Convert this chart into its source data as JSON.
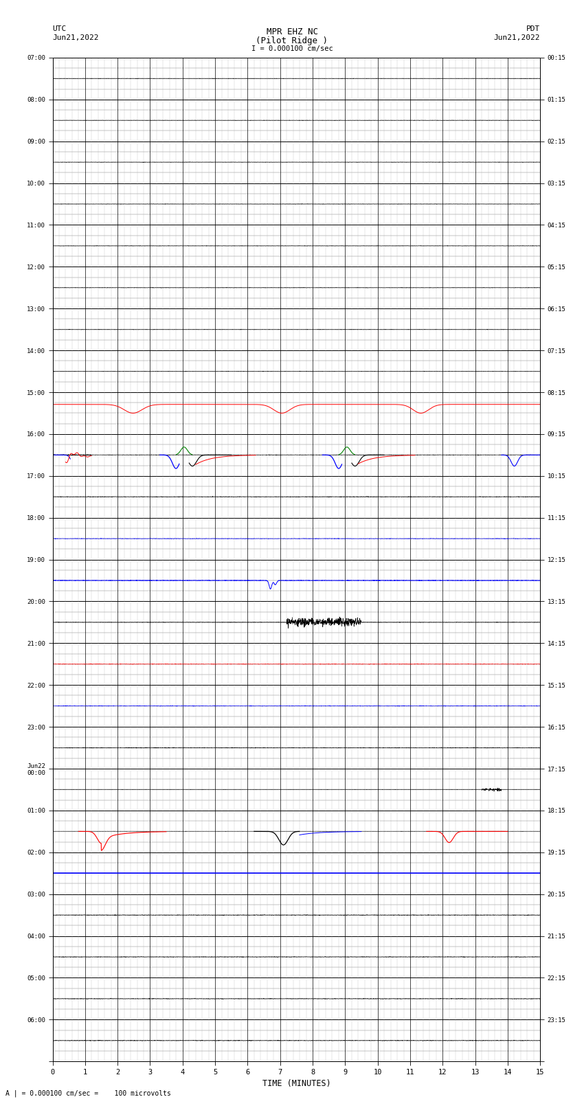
{
  "title_line1": "MPR EHZ NC",
  "title_line2": "(Pilot Ridge )",
  "scale_label": "I = 0.000100 cm/sec",
  "bottom_label": "A | = 0.000100 cm/sec =    100 microvolts",
  "xlabel": "TIME (MINUTES)",
  "left_header_1": "UTC",
  "left_header_2": "Jun21,2022",
  "right_header_1": "PDT",
  "right_header_2": "Jun21,2022",
  "left_times": [
    "07:00",
    "08:00",
    "09:00",
    "10:00",
    "11:00",
    "12:00",
    "13:00",
    "14:00",
    "15:00",
    "16:00",
    "17:00",
    "18:00",
    "19:00",
    "20:00",
    "21:00",
    "22:00",
    "23:00",
    "Jun22\n00:00",
    "01:00",
    "02:00",
    "03:00",
    "04:00",
    "05:00",
    "06:00"
  ],
  "right_times": [
    "00:15",
    "01:15",
    "02:15",
    "03:15",
    "04:15",
    "05:15",
    "06:15",
    "07:15",
    "08:15",
    "09:15",
    "10:15",
    "11:15",
    "12:15",
    "13:15",
    "14:15",
    "15:15",
    "16:15",
    "17:15",
    "18:15",
    "19:15",
    "20:15",
    "21:15",
    "22:15",
    "23:15"
  ],
  "num_rows": 24,
  "bg_color": "#ffffff",
  "major_grid_color": "#000000",
  "minor_grid_color": "#888888",
  "figsize": [
    8.5,
    16.13
  ],
  "dpi": 100
}
